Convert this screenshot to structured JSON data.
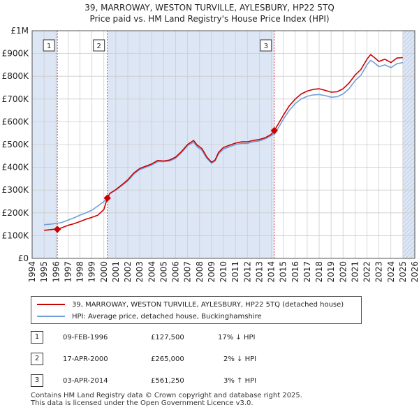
{
  "title": {
    "line1": "39, MARROWAY, WESTON TURVILLE, AYLESBURY, HP22 5TQ",
    "line2": "Price paid vs. HM Land Registry's House Price Index (HPI)"
  },
  "colors": {
    "property": "#cc0000",
    "hpi": "#6f9fd8",
    "shade": "#dde6f5",
    "marker": "#cc0000"
  },
  "legend": {
    "property_label": "39, MARROWAY, WESTON TURVILLE, AYLESBURY, HP22 5TQ (detached house)",
    "hpi_label": "HPI: Average price, detached house, Buckinghamshire"
  },
  "transactions": [
    {
      "num": "1",
      "date": "09-FEB-1996",
      "price": "£127,500",
      "hpi_diff": "17% ↓ HPI"
    },
    {
      "num": "2",
      "date": "17-APR-2000",
      "price": "£265,000",
      "hpi_diff": "2% ↓ HPI"
    },
    {
      "num": "3",
      "date": "03-APR-2014",
      "price": "£561,250",
      "hpi_diff": "3% ↑ HPI"
    }
  ],
  "footer": {
    "line1": "Contains HM Land Registry data © Crown copyright and database right 2025.",
    "line2": "This data is licensed under the Open Government Licence v3.0."
  },
  "chart_data": {
    "type": "line",
    "title": "Price paid vs. HM Land Registry's House Price Index (HPI)",
    "xlim": [
      1994,
      2026
    ],
    "ylim": [
      0,
      1000000
    ],
    "x_ticks": [
      1994,
      1995,
      1996,
      1997,
      1998,
      1999,
      2000,
      2001,
      2002,
      2003,
      2004,
      2005,
      2006,
      2007,
      2008,
      2009,
      2010,
      2011,
      2012,
      2013,
      2014,
      2015,
      2016,
      2017,
      2018,
      2019,
      2020,
      2021,
      2022,
      2023,
      2024,
      2025,
      2026
    ],
    "y_ticks": [
      0,
      100000,
      200000,
      300000,
      400000,
      500000,
      600000,
      700000,
      800000,
      900000,
      1000000
    ],
    "y_tick_labels": [
      "£0",
      "£100K",
      "£200K",
      "£300K",
      "£400K",
      "£500K",
      "£600K",
      "£700K",
      "£800K",
      "£900K",
      "£1M"
    ],
    "grid": true,
    "shaded_regions": [
      [
        1994,
        1996.11
      ],
      [
        2000.29,
        2014.25
      ],
      [
        2025.0,
        2026
      ]
    ],
    "sales": [
      {
        "label": "1",
        "x": 1996.11,
        "y": 127500
      },
      {
        "label": "2",
        "x": 2000.29,
        "y": 265000
      },
      {
        "label": "3",
        "x": 2014.25,
        "y": 561250
      }
    ],
    "series": [
      {
        "name": "HPI: Average price, detached house, Buckinghamshire",
        "x": [
          1995.0,
          1995.5,
          1996.0,
          1996.5,
          1997.0,
          1997.5,
          1998.0,
          1998.5,
          1999.0,
          1999.5,
          2000.0,
          2000.3,
          2000.5,
          2001.0,
          2001.5,
          2002.0,
          2002.5,
          2003.0,
          2003.5,
          2004.0,
          2004.5,
          2005.0,
          2005.5,
          2006.0,
          2006.5,
          2007.0,
          2007.5,
          2007.8,
          2008.2,
          2008.6,
          2009.0,
          2009.3,
          2009.6,
          2010.0,
          2010.5,
          2011.0,
          2011.5,
          2012.0,
          2012.5,
          2013.0,
          2013.5,
          2014.0,
          2014.3,
          2014.6,
          2015.0,
          2015.5,
          2016.0,
          2016.5,
          2017.0,
          2017.5,
          2018.0,
          2018.5,
          2019.0,
          2019.5,
          2020.0,
          2020.5,
          2021.0,
          2021.5,
          2022.0,
          2022.3,
          2022.6,
          2023.0,
          2023.5,
          2024.0,
          2024.5,
          2025.0
        ],
        "y": [
          148000,
          150000,
          153000,
          158000,
          168000,
          178000,
          190000,
          200000,
          212000,
          230000,
          250000,
          265000,
          285000,
          300000,
          320000,
          340000,
          370000,
          390000,
          400000,
          410000,
          425000,
          425000,
          428000,
          440000,
          465000,
          495000,
          510000,
          490000,
          475000,
          440000,
          418000,
          428000,
          460000,
          480000,
          490000,
          500000,
          505000,
          505000,
          512000,
          516000,
          525000,
          540000,
          548000,
          575000,
          610000,
          650000,
          680000,
          700000,
          712000,
          718000,
          720000,
          715000,
          708000,
          710000,
          722000,
          745000,
          780000,
          805000,
          850000,
          870000,
          860000,
          842000,
          850000,
          838000,
          855000,
          860000
        ]
      },
      {
        "name": "39, MARROWAY, WESTON TURVILLE, AYLESBURY, HP22 5TQ (detached house)",
        "x": [
          1995.0,
          1995.5,
          1996.0,
          1996.11,
          1996.5,
          1997.0,
          1997.5,
          1998.0,
          1998.5,
          1999.0,
          1999.5,
          2000.0,
          2000.29,
          2000.5,
          2001.0,
          2001.5,
          2002.0,
          2002.5,
          2003.0,
          2003.5,
          2004.0,
          2004.5,
          2005.0,
          2005.5,
          2006.0,
          2006.5,
          2007.0,
          2007.5,
          2007.8,
          2008.2,
          2008.6,
          2009.0,
          2009.3,
          2009.6,
          2010.0,
          2010.5,
          2011.0,
          2011.5,
          2012.0,
          2012.5,
          2013.0,
          2013.5,
          2014.0,
          2014.25,
          2014.6,
          2015.0,
          2015.5,
          2016.0,
          2016.5,
          2017.0,
          2017.5,
          2018.0,
          2018.5,
          2019.0,
          2019.5,
          2020.0,
          2020.5,
          2021.0,
          2021.5,
          2022.0,
          2022.3,
          2022.6,
          2023.0,
          2023.5,
          2024.0,
          2024.5,
          2025.0
        ],
        "y": [
          123000,
          126000,
          129000,
          127500,
          135000,
          145000,
          152000,
          162000,
          172000,
          180000,
          190000,
          215000,
          265000,
          285000,
          302000,
          323000,
          345000,
          375000,
          395000,
          405000,
          415000,
          430000,
          428000,
          432000,
          445000,
          470000,
          500000,
          518000,
          498000,
          482000,
          446000,
          422000,
          432000,
          466000,
          487000,
          497000,
          506000,
          512000,
          512000,
          518000,
          522000,
          530000,
          545000,
          561250,
          592000,
          628000,
          670000,
          700000,
          722000,
          735000,
          742000,
          745000,
          738000,
          730000,
          732000,
          745000,
          770000,
          805000,
          830000,
          875000,
          895000,
          883000,
          865000,
          875000,
          860000,
          880000,
          882000
        ]
      }
    ]
  }
}
